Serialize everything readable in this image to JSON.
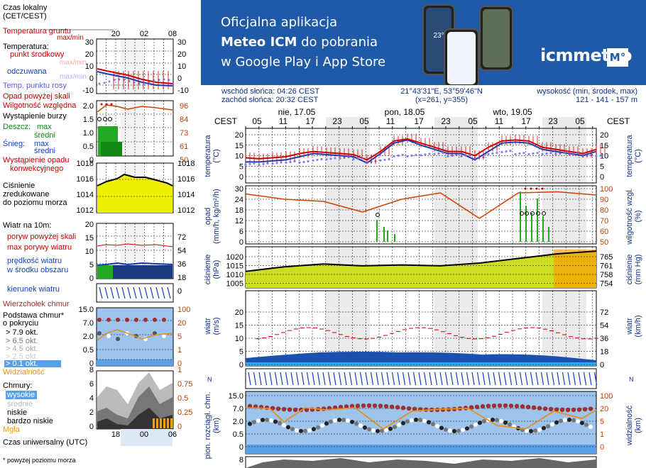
{
  "legend": {
    "time_local_label": "Czas lokalny\n(CET/CEST)",
    "time_local_ticks": [
      "20",
      "02",
      "08"
    ],
    "temp_ground_label": "Temperatura gruntu",
    "temp_ground_sub": "max/min",
    "temperature_label": "Temperatura:",
    "temp_mid_label": "punkt środkowy",
    "temp_maxmin_label": "max/min",
    "temp_feels_label": "odczuwana",
    "temp_feels_maxmin": "max/min",
    "temp_dew_label": "Temp. punktu rosy",
    "temp_ticks": [
      "30",
      "20",
      "10",
      "0",
      "-10"
    ],
    "precip_above_label": "Opad powyżej skali",
    "humidity_label": "Wilgotność względna",
    "storm_label": "Wystąpienie burzy",
    "rain_label": "Deszcz:",
    "rain_max": "max",
    "rain_mid": "średni",
    "snow_label": "Śnieg:",
    "snow_max": "max",
    "snow_mid": "średni",
    "precip_occurrence": "Wystąpienie opadu",
    "convective": "konwekcyjnego",
    "precip_left_ticks": [
      "2.0",
      "1.5",
      "1.0",
      "0.5",
      "0"
    ],
    "precip_right_ticks": [
      "96",
      "84",
      "73",
      "61",
      "50"
    ],
    "pressure_ticks": [
      "1018",
      "1016",
      "1014",
      "1012"
    ],
    "pressure_label": "Ciśnienie\nzredukowane\ndo poziomu morza",
    "wind_title": "Wiatr na 10m:",
    "gust_above": "poryw powyżej skali",
    "gust_max": "max porywy wiatru",
    "wind_speed": "prędkość wiatru",
    "wind_avg": "w środku obszaru",
    "wind_left_ticks": [
      "20",
      "15",
      "10",
      "5",
      "0"
    ],
    "wind_right_ticks": [
      "72",
      "54",
      "36",
      "18",
      "0"
    ],
    "wind_dir": "kierunek wiatru",
    "cloud_top": "Wierzchołek chmur",
    "cloud_base": "Podstawa chmur*\no pokryciu",
    "okt79": "> 7.9 okt.",
    "okt65": "> 6.5 okt.",
    "okt45": "> 4.5 okt.",
    "okt25": "> 2.5 okt.",
    "okt01": "> 0.1 okt.",
    "visibility": "Widzialność",
    "cb_left_ticks": [
      "15.0",
      "7.0",
      "2.0",
      "0.5",
      "0"
    ],
    "cb_right_ticks": [
      "100",
      "20",
      "5",
      "1",
      "0"
    ],
    "clouds_label": "Chmury:",
    "cl_high": "wysokie",
    "cl_mid": "średnie",
    "cl_low": "niskie",
    "cl_vlow": "bardzo niskie",
    "fog": "Mgła",
    "cl_left_ticks": [
      "8",
      "6",
      "4",
      "2",
      "0"
    ],
    "cl_right_ticks": [
      "1",
      "0.75",
      "0.5",
      "0.25",
      "0"
    ],
    "utc_label": "Czas uniwersalny (UTC)",
    "utc_ticks": [
      "18",
      "00",
      "06"
    ],
    "footnote": "* powyżej poziomu morza"
  },
  "banner": {
    "line1": "Oficjalna aplikacja",
    "line2_bold": "Meteo ICM",
    "line2_rest": " do pobrania",
    "line3": "w Google Play i App Store",
    "logo": "icmmeteo",
    "logo_box": "M°",
    "phone_temp": "23°"
  },
  "info": {
    "sunrise": "wschód słońca: 04:26 CEST",
    "sunset": "zachód słońca: 20:32 CEST",
    "coords": "21°43'31\"E, 53°59'46\"N",
    "grid": "(x=261,  y=355)",
    "elev_title": "wysokość (min, środek, max)",
    "elev_values": "121 - 141 - 157 m"
  },
  "axis": {
    "tz_left": "CEST",
    "tz_right": "CEST",
    "days": [
      "nie, 17.05",
      "pon, 18.05",
      "wto, 19.05"
    ],
    "hours": [
      "05",
      "11",
      "17",
      "23",
      "05",
      "11",
      "17",
      "23",
      "05",
      "11",
      "17",
      "23",
      "05"
    ]
  },
  "panels": {
    "temp": {
      "left_label": "temperatura\n(°C)",
      "right_label": "temperatura\n(°C)",
      "ticks": [
        "20",
        "15",
        "10",
        "5",
        "0"
      ]
    },
    "precip": {
      "left_label": "opad\n(mm/h, kg/m²/h)",
      "right_label": "wilgotność wzgl.\n(%)",
      "left_ticks": [
        "30",
        "24",
        "18",
        "12",
        "6",
        "0"
      ],
      "right_ticks": [
        "100",
        "90",
        "80",
        "70",
        "60",
        "50"
      ]
    },
    "press": {
      "left_label": "ciśnienie\n(hPa)",
      "right_label": "ciśnienie\n(mm Hg)",
      "left_ticks": [
        "1020",
        "1015",
        "1010",
        "1005"
      ],
      "right_ticks": [
        "765",
        "761",
        "758",
        "754"
      ]
    },
    "wind": {
      "left_label": "wiatr\n(m/s)",
      "right_label": "wiatr\n(km/h)",
      "left_ticks": [
        "20",
        "15",
        "10",
        "5",
        "0"
      ],
      "right_ticks": [
        "72",
        "54",
        "36",
        "18",
        "0"
      ]
    },
    "cb": {
      "left_label": "pion. rozciągł. chm.\n(km)",
      "right_label": "widzialność\n(km)",
      "left_ticks": [
        "15.0",
        "7.0",
        "2.0",
        "0.5",
        "0"
      ],
      "right_ticks": [
        "100",
        "20",
        "5",
        "1",
        "0"
      ]
    },
    "cl": {
      "left_ticks": [
        "8"
      ]
    }
  },
  "chart_data": [
    {
      "type": "line",
      "title": "temperatura",
      "ylabel": "temperatura (°C)",
      "ylim": [
        0,
        22
      ],
      "x": [
        "17.05 02",
        "17.05 05",
        "17.05 08",
        "17.05 11",
        "17.05 14",
        "17.05 17",
        "17.05 20",
        "17.05 23",
        "18.05 02",
        "18.05 05",
        "18.05 08",
        "18.05 11",
        "18.05 14",
        "18.05 17",
        "18.05 20",
        "18.05 23",
        "19.05 02",
        "19.05 05",
        "19.05 08",
        "19.05 11",
        "19.05 14",
        "19.05 17",
        "19.05 20",
        "19.05 23",
        "20.05 02",
        "20.05 05",
        "20.05 08"
      ],
      "series": [
        {
          "name": "punkt środkowy",
          "color": "#cc0000",
          "values": [
            9,
            8.5,
            9,
            9.5,
            11,
            12,
            11.5,
            11,
            10.5,
            8,
            12,
            17,
            18,
            16,
            14,
            12,
            12,
            10,
            14,
            17,
            17.5,
            17,
            14,
            13,
            12,
            11,
            13
          ]
        },
        {
          "name": "odczuwana",
          "color": "#1040c0",
          "values": [
            7,
            7,
            7.5,
            8,
            9.5,
            11,
            10.5,
            10,
            9.5,
            6.5,
            11,
            16,
            17.5,
            15,
            13,
            11,
            11,
            8,
            12,
            16,
            16.5,
            16,
            13,
            12,
            11,
            10,
            12
          ]
        },
        {
          "name": "Temp. punktu rosy",
          "color": "#8080ee",
          "values": [
            6,
            6,
            6.5,
            7,
            7,
            8,
            8.5,
            9,
            8.5,
            7,
            8,
            10,
            10,
            10.5,
            11,
            10,
            10,
            9,
            11,
            12,
            11,
            11,
            11,
            11,
            11,
            10,
            10
          ]
        }
      ]
    },
    {
      "type": "line",
      "title": "ciśnienie",
      "ylabel": "ciśnienie (hPa)",
      "ylim": [
        1005,
        1022
      ],
      "x": [
        "17.05 02",
        "17.05 11",
        "17.05 20",
        "18.05 05",
        "18.05 14",
        "18.05 23",
        "19.05 08",
        "19.05 17",
        "20.05 02",
        "20.05 08"
      ],
      "series": [
        {
          "name": "ciśnienie",
          "color": "#000000",
          "values": [
            1010.5,
            1013,
            1014.5,
            1013.5,
            1014,
            1013.5,
            1015,
            1017.5,
            1020,
            1021.5
          ]
        }
      ]
    },
    {
      "type": "line",
      "title": "wilgotność względna",
      "ylabel": "wilgotność wzgl. (%)",
      "ylim": [
        50,
        100
      ],
      "x": [
        "17.05 02",
        "17.05 11",
        "17.05 20",
        "18.05 05",
        "18.05 14",
        "18.05 23",
        "19.05 08",
        "19.05 17",
        "20.05 02",
        "20.05 08"
      ],
      "series": [
        {
          "name": "wilgotność",
          "color": "#d04000",
          "values": [
            95,
            90,
            88,
            78,
            90,
            96,
            72,
            96,
            97,
            94
          ]
        }
      ]
    }
  ]
}
